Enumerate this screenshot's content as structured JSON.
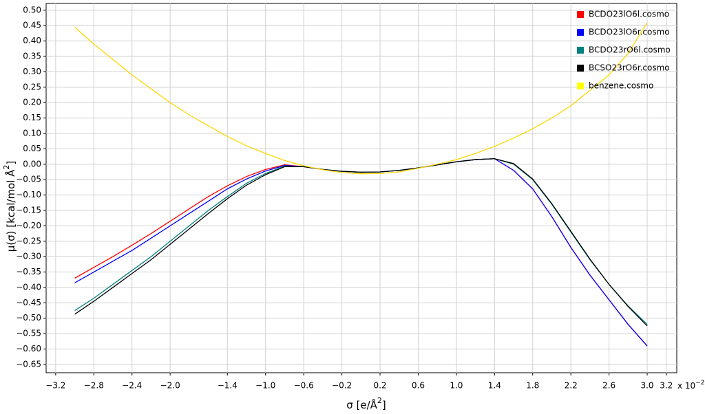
{
  "chart_data": {
    "type": "line",
    "xlabel": [
      "σ [e/Å",
      "2",
      "]"
    ],
    "ylabel": [
      "μ(σ) [kcal/mol Å",
      "2",
      "]"
    ],
    "x_multiplier": [
      "x 10",
      "−2"
    ],
    "x": [
      -3.0,
      -2.8,
      -2.6,
      -2.4,
      -2.2,
      -2.0,
      -1.8,
      -1.6,
      -1.4,
      -1.2,
      -1.0,
      -0.8,
      -0.6,
      -0.4,
      -0.2,
      0.0,
      0.2,
      0.4,
      0.6,
      0.8,
      1.0,
      1.2,
      1.4,
      1.6,
      1.8,
      2.0,
      2.2,
      2.4,
      2.6,
      2.8,
      3.0
    ],
    "series": [
      {
        "name": "BCDO23lO6l.cosmo",
        "color": "#ff0000",
        "values": [
          -0.37,
          -0.335,
          -0.3,
          -0.263,
          -0.225,
          -0.185,
          -0.145,
          -0.105,
          -0.07,
          -0.04,
          -0.017,
          -0.002,
          -0.008,
          -0.017,
          -0.023,
          -0.026,
          -0.025,
          -0.02,
          -0.012,
          -0.002,
          0.008,
          0.015,
          0.018,
          -0.02,
          -0.08,
          -0.17,
          -0.27,
          -0.36,
          -0.44,
          -0.52,
          -0.59
        ]
      },
      {
        "name": "BCDO23lO6r.cosmo",
        "color": "#0000ff",
        "values": [
          -0.385,
          -0.35,
          -0.315,
          -0.28,
          -0.24,
          -0.2,
          -0.16,
          -0.12,
          -0.08,
          -0.048,
          -0.022,
          -0.004,
          -0.008,
          -0.017,
          -0.023,
          -0.026,
          -0.025,
          -0.02,
          -0.012,
          -0.002,
          0.008,
          0.015,
          0.018,
          -0.02,
          -0.08,
          -0.17,
          -0.27,
          -0.36,
          -0.44,
          -0.52,
          -0.59
        ]
      },
      {
        "name": "BCDO23rO6l.cosmo",
        "color": "#008080",
        "values": [
          -0.475,
          -0.435,
          -0.39,
          -0.345,
          -0.3,
          -0.25,
          -0.2,
          -0.15,
          -0.105,
          -0.062,
          -0.03,
          -0.006,
          -0.008,
          -0.017,
          -0.023,
          -0.026,
          -0.025,
          -0.02,
          -0.012,
          -0.002,
          0.008,
          0.015,
          0.018,
          0.0,
          -0.05,
          -0.13,
          -0.22,
          -0.31,
          -0.39,
          -0.46,
          -0.52
        ]
      },
      {
        "name": "BCSO23rO6r.cosmo",
        "color": "#000000",
        "values": [
          -0.487,
          -0.445,
          -0.4,
          -0.355,
          -0.31,
          -0.26,
          -0.21,
          -0.16,
          -0.112,
          -0.068,
          -0.034,
          -0.008,
          -0.008,
          -0.017,
          -0.023,
          -0.026,
          -0.025,
          -0.02,
          -0.012,
          -0.002,
          0.008,
          0.015,
          0.018,
          0.002,
          -0.048,
          -0.128,
          -0.218,
          -0.308,
          -0.39,
          -0.462,
          -0.525
        ]
      },
      {
        "name": "benzene.cosmo",
        "color": "#ffd700",
        "values": [
          0.445,
          0.39,
          0.34,
          0.29,
          0.245,
          0.2,
          0.16,
          0.125,
          0.09,
          0.06,
          0.035,
          0.012,
          -0.005,
          -0.018,
          -0.027,
          -0.031,
          -0.03,
          -0.025,
          -0.013,
          0.0,
          0.015,
          0.035,
          0.058,
          0.085,
          0.115,
          0.15,
          0.19,
          0.24,
          0.29,
          0.36,
          0.46
        ]
      }
    ],
    "legend_colors": [
      "#ff0000",
      "#0000ff",
      "#008080",
      "#000000",
      "#ffff00"
    ],
    "xlim": [
      -3.3,
      3.31
    ],
    "ylim": [
      -0.677,
      0.522
    ],
    "xticks": [
      {
        "value": -3.2,
        "label": "−3.2"
      },
      {
        "value": -2.8,
        "label": "−2.8"
      },
      {
        "value": -2.4,
        "label": "−2.4"
      },
      {
        "value": -2.0,
        "label": "−2.0"
      },
      {
        "value": -1.4,
        "label": "−1.4"
      },
      {
        "value": -1.0,
        "label": "−1.0"
      },
      {
        "value": -0.6,
        "label": "−0.6"
      },
      {
        "value": -0.2,
        "label": "−0.2"
      },
      0.2,
      0.6,
      {
        "value": 1.0,
        "label": "1.0"
      },
      1.4,
      1.8,
      2.2,
      2.6,
      {
        "value": 3.0,
        "label": "3.0"
      },
      3.2
    ],
    "yticks": [
      {
        "value": 0.5,
        "label": "0.50"
      },
      0.45,
      {
        "value": 0.4,
        "label": "0.40"
      },
      0.35,
      {
        "value": 0.3,
        "label": "0.30"
      },
      0.25,
      {
        "value": 0.2,
        "label": "0.20"
      },
      0.15,
      {
        "value": 0.1,
        "label": "0.10"
      },
      0.05,
      {
        "value": 0,
        "label": "0.00"
      },
      {
        "value": -0.05,
        "label": "−0.05"
      },
      {
        "value": -0.1,
        "label": "−0.10"
      },
      {
        "value": -0.15,
        "label": "−0.15"
      },
      {
        "value": -0.2,
        "label": "−0.20"
      },
      {
        "value": -0.25,
        "label": "−0.25"
      },
      {
        "value": -0.3,
        "label": "−0.30"
      },
      {
        "value": -0.35,
        "label": "−0.35"
      },
      {
        "value": -0.4,
        "label": "−0.40"
      },
      {
        "value": -0.45,
        "label": "−0.45"
      },
      {
        "value": -0.5,
        "label": "−0.50"
      },
      {
        "value": -0.55,
        "label": "−0.55"
      },
      {
        "value": -0.6,
        "label": "−0.60"
      },
      {
        "value": -0.65,
        "label": "−0.65"
      }
    ],
    "grid": true,
    "legend": "upper right"
  }
}
